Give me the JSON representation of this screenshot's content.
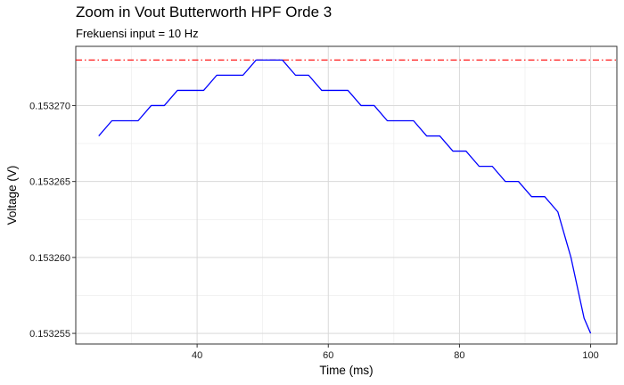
{
  "chart_data": {
    "type": "line",
    "title": "Zoom in Vout Butterworth HPF Orde 3",
    "subtitle": "Frekuensi input = 10 Hz",
    "xlabel": "Time (ms)",
    "ylabel": "Voltage (V)",
    "xlim": [
      21.5,
      104
    ],
    "ylim": [
      0.1532543,
      0.1532739
    ],
    "x_ticks": [
      40,
      60,
      80,
      100
    ],
    "y_ticks": [
      0.153255,
      0.15326,
      0.153265,
      0.15327
    ],
    "y_tick_labels": [
      "0.153255",
      "0.153260",
      "0.153265",
      "0.153270"
    ],
    "grid": true,
    "legend": "none",
    "series": [
      {
        "color": "#0000ff",
        "x": [
          25,
          27,
          31,
          33,
          35,
          37,
          41,
          43,
          47,
          49,
          53,
          55,
          57,
          59,
          63,
          65,
          67,
          69,
          73,
          75,
          77,
          79,
          81,
          83,
          85,
          87,
          89,
          91,
          93,
          95,
          97,
          99,
          100
        ],
        "y": [
          0.153268,
          0.153269,
          0.153269,
          0.15327,
          0.15327,
          0.153271,
          0.153271,
          0.153272,
          0.153272,
          0.153273,
          0.153273,
          0.153272,
          0.153272,
          0.153271,
          0.153271,
          0.15327,
          0.15327,
          0.153269,
          0.153269,
          0.153268,
          0.153268,
          0.153267,
          0.153267,
          0.153266,
          0.153266,
          0.153265,
          0.153265,
          0.153264,
          0.153264,
          0.153263,
          0.15326,
          0.153256,
          0.153255
        ]
      }
    ],
    "reference_lines": [
      {
        "y": 0.153273,
        "color": "#ff0000",
        "style": "dashdot"
      }
    ]
  }
}
